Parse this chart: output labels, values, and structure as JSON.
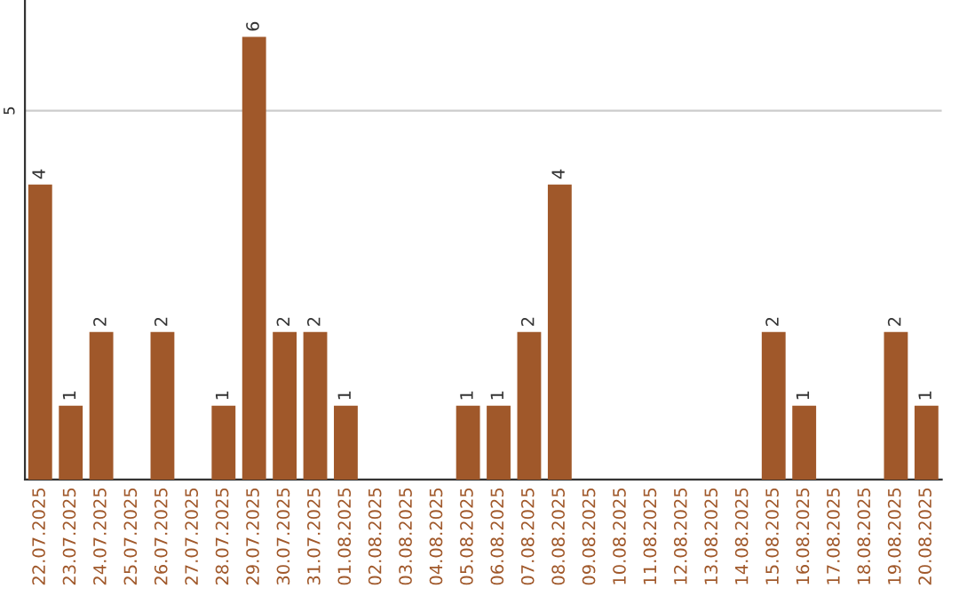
{
  "chart_data": {
    "type": "bar",
    "categories": [
      "22.07.2025",
      "23.07.2025",
      "24.07.2025",
      "25.07.2025",
      "26.07.2025",
      "27.07.2025",
      "28.07.2025",
      "29.07.2025",
      "30.07.2025",
      "31.07.2025",
      "01.08.2025",
      "02.08.2025",
      "03.08.2025",
      "04.08.2025",
      "05.08.2025",
      "06.08.2025",
      "07.08.2025",
      "08.08.2025",
      "09.08.2025",
      "10.08.2025",
      "11.08.2025",
      "12.08.2025",
      "13.08.2025",
      "14.08.2025",
      "15.08.2025",
      "16.08.2025",
      "17.08.2025",
      "18.08.2025",
      "19.08.2025",
      "20.08.2025"
    ],
    "values": [
      4,
      1,
      2,
      0,
      2,
      0,
      1,
      6,
      2,
      2,
      1,
      0,
      0,
      0,
      1,
      1,
      2,
      4,
      0,
      0,
      0,
      0,
      0,
      0,
      2,
      1,
      0,
      0,
      2,
      1
    ],
    "value_labels": [
      "4",
      "1",
      "2",
      null,
      "2",
      null,
      "1",
      "6",
      "2",
      "2",
      "1",
      null,
      null,
      null,
      "1",
      "1",
      "2",
      "4",
      null,
      null,
      null,
      null,
      null,
      null,
      "2",
      "1",
      null,
      null,
      "2",
      "1"
    ],
    "color": "#a0582a",
    "ylim": [
      0,
      6.5
    ],
    "yticks": [
      5
    ],
    "grid": "y",
    "legend": false
  }
}
